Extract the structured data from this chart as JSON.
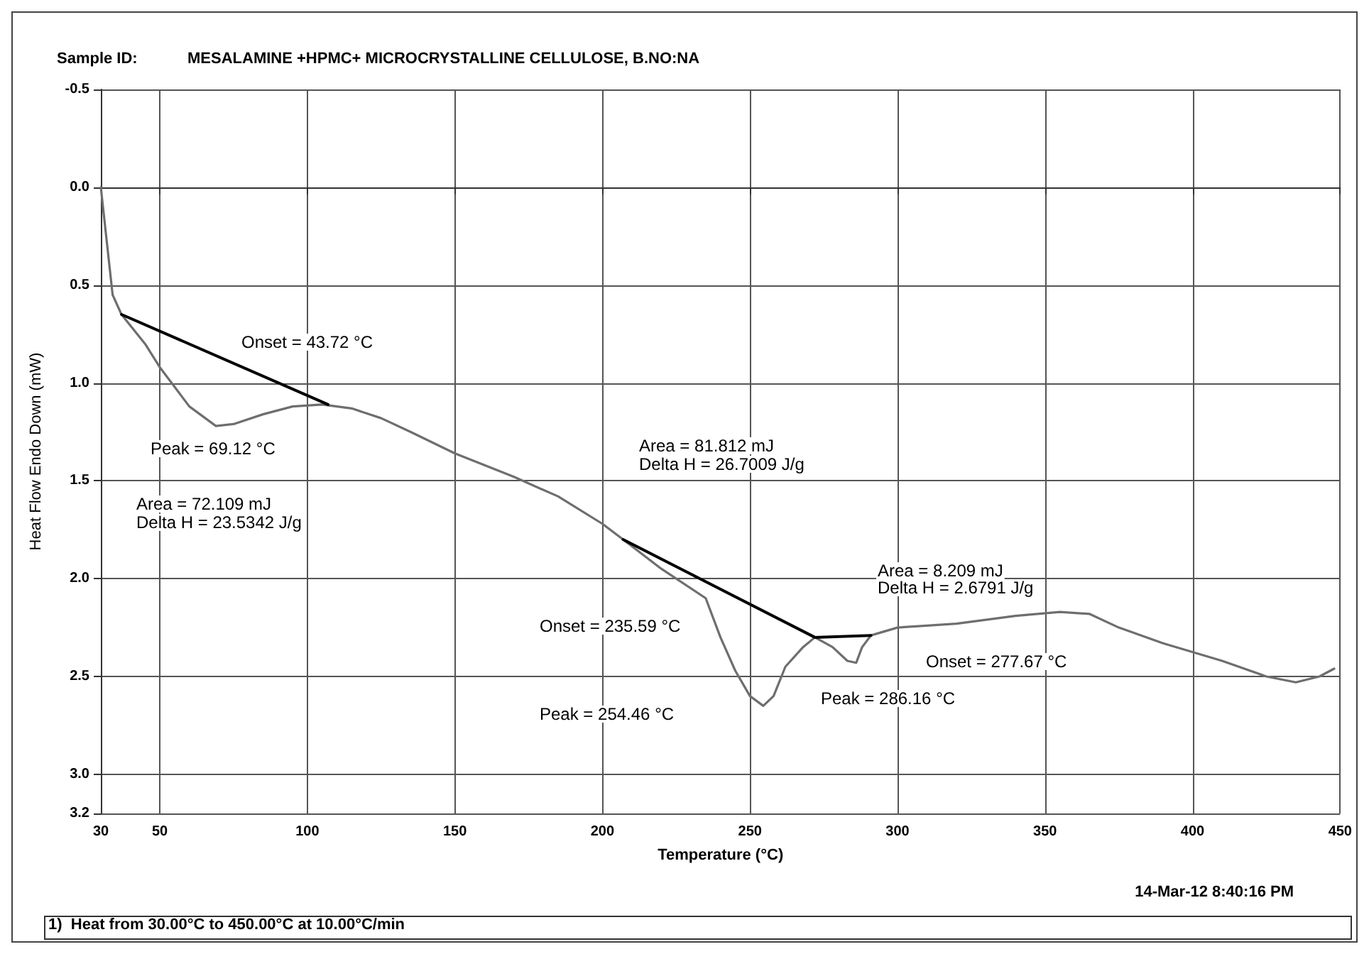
{
  "chart_data": {
    "type": "line",
    "title": "Sample ID:",
    "subtitle": "MESALAMINE +HPMC+ MICROCRYSTALLINE CELLULOSE, B.NO:NA",
    "xlabel": "Temperature (°C)",
    "ylabel": "Heat Flow Endo Down (mW)",
    "xlim": [
      30,
      450
    ],
    "xticks": [
      30,
      50,
      100,
      150,
      200,
      250,
      300,
      350,
      400,
      450
    ],
    "ylim": [
      3.2,
      -0.5
    ],
    "yticks": [
      -0.5,
      {
        "value": 0,
        "label": "0.0"
      },
      0.5,
      {
        "value": 1,
        "label": "1.0"
      },
      1.5,
      {
        "value": 2,
        "label": "2.0"
      },
      2.5,
      {
        "value": 3,
        "label": "3.0"
      },
      3.2
    ],
    "grid": true,
    "marker": "none",
    "line_style": "solid",
    "series": [
      {
        "color": "#6e6e6e",
        "x": [
          30,
          34,
          37,
          45,
          50,
          60,
          69,
          75,
          85,
          95,
          105,
          115,
          125,
          135,
          150,
          170,
          185,
          200,
          207,
          220,
          235,
          240,
          245,
          250,
          254.5,
          258,
          262,
          268,
          272,
          278,
          283,
          286,
          288,
          291,
          300,
          310,
          320,
          340,
          355,
          365,
          375,
          390,
          410,
          425,
          435,
          443,
          448
        ],
        "values": [
          0.0,
          0.55,
          0.65,
          0.8,
          0.92,
          1.12,
          1.22,
          1.21,
          1.16,
          1.12,
          1.11,
          1.13,
          1.18,
          1.25,
          1.36,
          1.48,
          1.58,
          1.72,
          1.8,
          1.95,
          2.1,
          2.3,
          2.47,
          2.6,
          2.65,
          2.6,
          2.45,
          2.35,
          2.3,
          2.35,
          2.42,
          2.43,
          2.35,
          2.29,
          2.25,
          2.24,
          2.23,
          2.19,
          2.17,
          2.18,
          2.25,
          2.33,
          2.42,
          2.5,
          2.53,
          2.5,
          2.46
        ]
      },
      {
        "color": "#000000",
        "x": [
          37,
          107
        ],
        "values": [
          0.65,
          1.11
        ]
      },
      {
        "color": "#000000",
        "x": [
          207,
          272,
          291
        ],
        "values": [
          1.8,
          2.3,
          2.29
        ]
      }
    ],
    "annotations": [
      "Onset = 43.72 °C",
      "Peak = 69.12 °C",
      "Area = 72.109 mJ",
      "Delta H = 23.5342 J/g",
      "Area = 81.812 mJ",
      "Delta H = 26.7009 J/g",
      "Area = 8.209 mJ",
      "Delta H = 2.6791 J/g",
      "Onset = 235.59 °C",
      "Peak = 254.46 °C",
      "Peak = 286.16 °C",
      "Onset = 277.67 °C",
      "14-Mar-12 8:40:16 PM",
      "1)  Heat from 30.00°C to 450.00°C at 10.00°C/min"
    ]
  }
}
